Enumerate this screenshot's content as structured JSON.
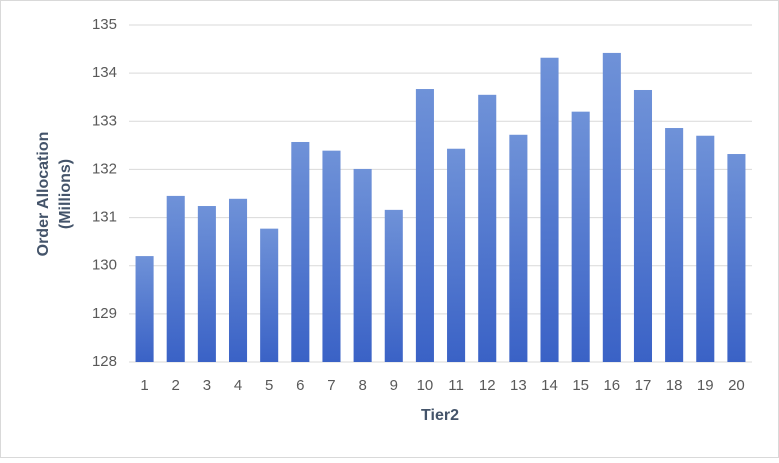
{
  "chart_data": {
    "type": "bar",
    "xlabel": "Tier2",
    "ylabel": [
      "Order Allocation",
      "(Millions)"
    ],
    "categories": [
      "1",
      "2",
      "3",
      "4",
      "5",
      "6",
      "7",
      "8",
      "9",
      "10",
      "11",
      "12",
      "13",
      "14",
      "15",
      "16",
      "17",
      "18",
      "19",
      "20"
    ],
    "values": [
      130.2,
      131.45,
      131.24,
      131.39,
      130.77,
      132.57,
      132.39,
      132.01,
      131.16,
      133.67,
      132.43,
      133.55,
      132.72,
      134.32,
      133.2,
      134.42,
      133.65,
      132.86,
      132.7,
      132.32
    ],
    "color": "#4472c4",
    "ylim": [
      128,
      135
    ],
    "yticks": [
      128,
      129,
      130,
      131,
      132,
      133,
      134,
      135
    ],
    "grid": true
  }
}
